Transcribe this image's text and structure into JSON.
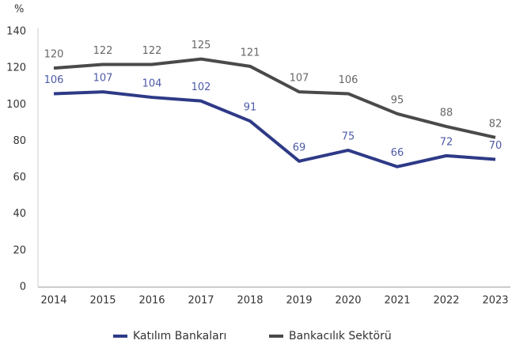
{
  "chart_data": {
    "type": "line",
    "y_label": "%",
    "categories": [
      "2014",
      "2015",
      "2016",
      "2017",
      "2018",
      "2019",
      "2020",
      "2021",
      "2022",
      "2023"
    ],
    "series": [
      {
        "name": "Katılım Bankaları",
        "color": "#2e3a87",
        "label_color": "#4d5aa6",
        "values": [
          106,
          107,
          104,
          102,
          91,
          69,
          75,
          66,
          72,
          70
        ]
      },
      {
        "name": "Bankacılık Sektörü",
        "color": "#4a4a4a",
        "label_color": "#666666",
        "values": [
          120,
          122,
          122,
          125,
          121,
          107,
          106,
          95,
          88,
          82
        ]
      }
    ],
    "ylim": [
      0,
      140
    ],
    "yticks": [
      0,
      20,
      40,
      60,
      80,
      100,
      120,
      140
    ],
    "grid": false,
    "legend": "bottom"
  }
}
